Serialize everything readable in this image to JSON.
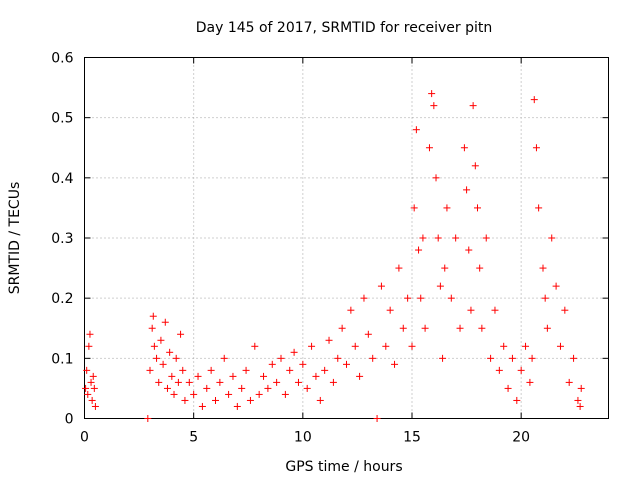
{
  "chart_data": {
    "type": "scatter",
    "title": "Day 145 of 2017, SRMTID for receiver pitn",
    "xlabel": "GPS time / hours",
    "ylabel": "SRMTID / TECUs",
    "xlim": [
      0,
      24
    ],
    "ylim": [
      0,
      0.6
    ],
    "xticks": [
      0,
      5,
      10,
      15,
      20
    ],
    "xtick_labels": [
      "0",
      "5",
      "10",
      "15",
      "20"
    ],
    "yticks": [
      0,
      0.1,
      0.2,
      0.3,
      0.4,
      0.5,
      0.6
    ],
    "ytick_labels": [
      "0",
      "0.1",
      "0.2",
      "0.3",
      "0.4",
      "0.5",
      "0.6"
    ],
    "grid": true,
    "marker": "plus",
    "color": "#ff0000",
    "series": [
      {
        "name": "SRMTID",
        "points": [
          [
            0.05,
            0.05
          ],
          [
            0.1,
            0.08
          ],
          [
            0.15,
            0.04
          ],
          [
            0.2,
            0.12
          ],
          [
            0.25,
            0.14
          ],
          [
            0.3,
            0.06
          ],
          [
            0.35,
            0.03
          ],
          [
            0.4,
            0.07
          ],
          [
            0.45,
            0.05
          ],
          [
            0.5,
            0.02
          ],
          [
            2.9,
            0.0
          ],
          [
            3.0,
            0.08
          ],
          [
            3.1,
            0.15
          ],
          [
            3.15,
            0.17
          ],
          [
            3.2,
            0.12
          ],
          [
            3.3,
            0.1
          ],
          [
            3.4,
            0.06
          ],
          [
            3.5,
            0.13
          ],
          [
            3.6,
            0.09
          ],
          [
            3.7,
            0.16
          ],
          [
            3.8,
            0.05
          ],
          [
            3.9,
            0.11
          ],
          [
            4.0,
            0.07
          ],
          [
            4.1,
            0.04
          ],
          [
            4.2,
            0.1
          ],
          [
            4.3,
            0.06
          ],
          [
            4.4,
            0.14
          ],
          [
            4.5,
            0.08
          ],
          [
            4.6,
            0.03
          ],
          [
            4.8,
            0.06
          ],
          [
            5.0,
            0.04
          ],
          [
            5.2,
            0.07
          ],
          [
            5.4,
            0.02
          ],
          [
            5.6,
            0.05
          ],
          [
            5.8,
            0.08
          ],
          [
            6.0,
            0.03
          ],
          [
            6.2,
            0.06
          ],
          [
            6.4,
            0.1
          ],
          [
            6.6,
            0.04
          ],
          [
            6.8,
            0.07
          ],
          [
            7.0,
            0.02
          ],
          [
            7.2,
            0.05
          ],
          [
            7.4,
            0.08
          ],
          [
            7.6,
            0.03
          ],
          [
            7.8,
            0.12
          ],
          [
            8.0,
            0.04
          ],
          [
            8.2,
            0.07
          ],
          [
            8.4,
            0.05
          ],
          [
            8.6,
            0.09
          ],
          [
            8.8,
            0.06
          ],
          [
            9.0,
            0.1
          ],
          [
            9.2,
            0.04
          ],
          [
            9.4,
            0.08
          ],
          [
            9.6,
            0.11
          ],
          [
            9.8,
            0.06
          ],
          [
            10.0,
            0.09
          ],
          [
            10.2,
            0.05
          ],
          [
            10.4,
            0.12
          ],
          [
            10.6,
            0.07
          ],
          [
            10.8,
            0.03
          ],
          [
            11.0,
            0.08
          ],
          [
            11.2,
            0.13
          ],
          [
            11.4,
            0.06
          ],
          [
            11.6,
            0.1
          ],
          [
            11.8,
            0.15
          ],
          [
            12.0,
            0.09
          ],
          [
            12.2,
            0.18
          ],
          [
            12.4,
            0.12
          ],
          [
            12.6,
            0.07
          ],
          [
            12.8,
            0.2
          ],
          [
            13.0,
            0.14
          ],
          [
            13.2,
            0.1
          ],
          [
            13.4,
            0.0
          ],
          [
            13.6,
            0.22
          ],
          [
            13.8,
            0.12
          ],
          [
            14.0,
            0.18
          ],
          [
            14.2,
            0.09
          ],
          [
            14.4,
            0.25
          ],
          [
            14.6,
            0.15
          ],
          [
            14.8,
            0.2
          ],
          [
            15.0,
            0.12
          ],
          [
            15.1,
            0.35
          ],
          [
            15.2,
            0.48
          ],
          [
            15.3,
            0.28
          ],
          [
            15.4,
            0.2
          ],
          [
            15.5,
            0.3
          ],
          [
            15.6,
            0.15
          ],
          [
            15.8,
            0.45
          ],
          [
            15.9,
            0.54
          ],
          [
            16.0,
            0.52
          ],
          [
            16.1,
            0.4
          ],
          [
            16.2,
            0.3
          ],
          [
            16.3,
            0.22
          ],
          [
            16.4,
            0.1
          ],
          [
            16.5,
            0.25
          ],
          [
            16.6,
            0.35
          ],
          [
            16.8,
            0.2
          ],
          [
            17.0,
            0.3
          ],
          [
            17.2,
            0.15
          ],
          [
            17.4,
            0.45
          ],
          [
            17.5,
            0.38
          ],
          [
            17.6,
            0.28
          ],
          [
            17.7,
            0.18
          ],
          [
            17.8,
            0.52
          ],
          [
            17.9,
            0.42
          ],
          [
            18.0,
            0.35
          ],
          [
            18.1,
            0.25
          ],
          [
            18.2,
            0.15
          ],
          [
            18.4,
            0.3
          ],
          [
            18.6,
            0.1
          ],
          [
            18.8,
            0.18
          ],
          [
            19.0,
            0.08
          ],
          [
            19.2,
            0.12
          ],
          [
            19.4,
            0.05
          ],
          [
            19.6,
            0.1
          ],
          [
            19.8,
            0.03
          ],
          [
            20.0,
            0.08
          ],
          [
            20.2,
            0.12
          ],
          [
            20.4,
            0.06
          ],
          [
            20.5,
            0.1
          ],
          [
            20.6,
            0.53
          ],
          [
            20.7,
            0.45
          ],
          [
            20.8,
            0.35
          ],
          [
            21.0,
            0.25
          ],
          [
            21.1,
            0.2
          ],
          [
            21.2,
            0.15
          ],
          [
            21.4,
            0.3
          ],
          [
            21.6,
            0.22
          ],
          [
            21.8,
            0.12
          ],
          [
            22.0,
            0.18
          ],
          [
            22.2,
            0.06
          ],
          [
            22.4,
            0.1
          ],
          [
            22.6,
            0.03
          ],
          [
            22.7,
            0.02
          ],
          [
            22.75,
            0.05
          ]
        ]
      }
    ]
  }
}
